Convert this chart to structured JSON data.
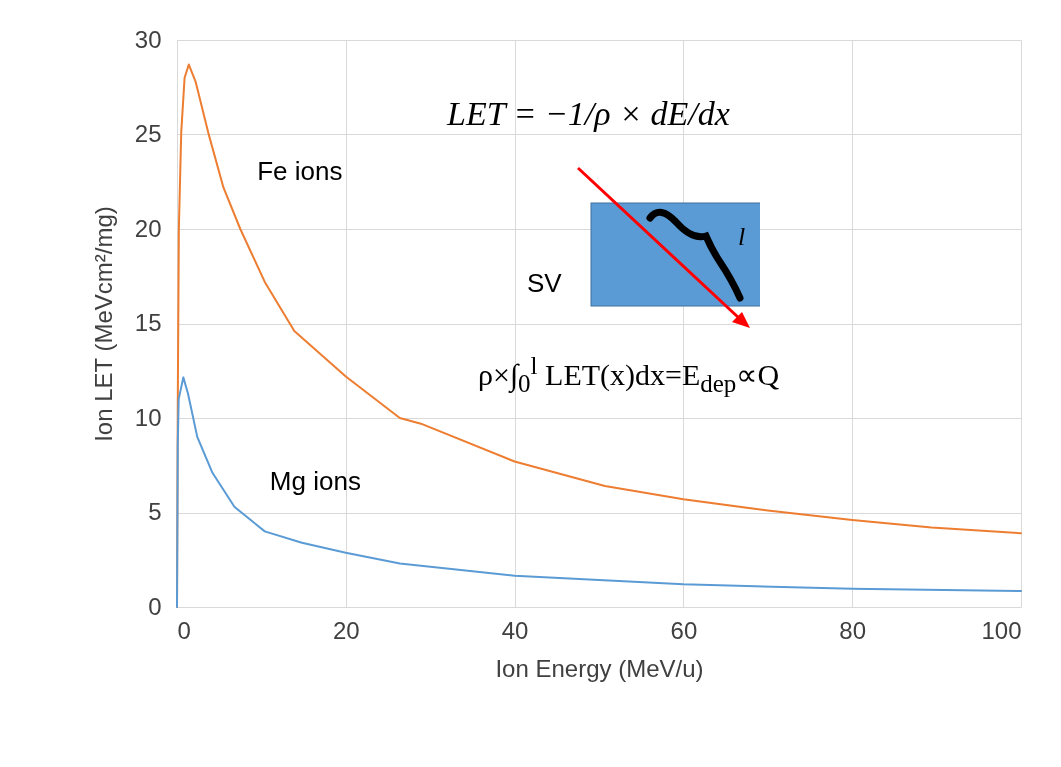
{
  "chart_data": {
    "type": "line",
    "xlabel": "Ion Energy (MeV/u)",
    "ylabel": "Ion LET (MeVcm²/mg)",
    "xlim": [
      0,
      100
    ],
    "xticks": [
      0,
      20,
      40,
      60,
      80,
      100
    ],
    "ylim": [
      0,
      30
    ],
    "yticks": [
      0,
      5,
      10,
      15,
      20,
      25,
      30
    ],
    "grid": true,
    "legend": false,
    "line_style": "solid",
    "series": [
      {
        "name": "Fe ions",
        "color": "#ed7d31",
        "x": [
          0,
          0.09,
          0.22,
          0.5,
          0.9,
          1.4,
          2.2,
          3.7,
          5.5,
          7.5,
          10.4,
          13.9,
          20,
          26.4,
          28.9,
          40,
          50.7,
          60,
          70,
          80,
          89.4,
          100
        ],
        "values": [
          0,
          10.6,
          20,
          25.1,
          28,
          28.7,
          27.8,
          25.1,
          22.2,
          20,
          17.2,
          14.6,
          12.2,
          10,
          9.7,
          7.7,
          6.4,
          5.7,
          5.1,
          4.6,
          4.2,
          3.9
        ]
      },
      {
        "name": "Mg ions",
        "color": "#5b9bd5",
        "x": [
          0,
          0.09,
          0.2,
          0.75,
          1.3,
          2.4,
          4.2,
          6.8,
          10.4,
          14.8,
          20,
          26.4,
          40,
          60,
          80,
          100
        ],
        "values": [
          0,
          8.6,
          11,
          12.15,
          11.3,
          9,
          7.1,
          5.3,
          4,
          3.4,
          2.87,
          2.3,
          1.65,
          1.2,
          0.96,
          0.84
        ]
      }
    ],
    "annotations": [
      "LET = −1/ρ × dE/dx",
      "SV",
      "l",
      "ρ×∫$_{0}$$^{l}$ LET(x)dx=E$_{dep}$∝Q"
    ]
  }
}
